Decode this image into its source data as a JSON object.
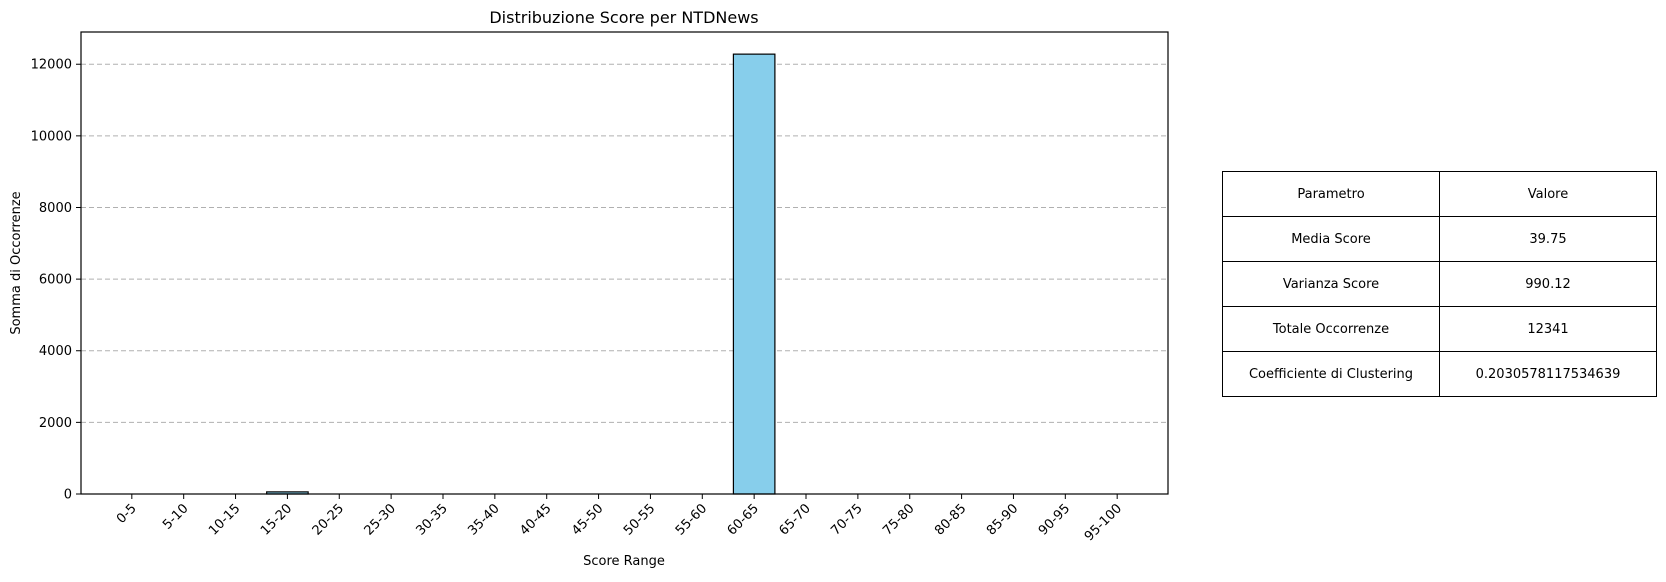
{
  "chart_data": {
    "type": "bar",
    "title": "Distribuzione Score per NTDNews",
    "xlabel": "Score Range",
    "ylabel": "Somma di Occorrenze",
    "categories": [
      "0-5",
      "5-10",
      "10-15",
      "15-20",
      "20-25",
      "25-30",
      "30-35",
      "35-40",
      "40-45",
      "45-50",
      "50-55",
      "55-60",
      "60-65",
      "65-70",
      "70-75",
      "75-80",
      "80-85",
      "85-90",
      "90-95",
      "95-100"
    ],
    "values": [
      0,
      0,
      0,
      59,
      0,
      0,
      0,
      0,
      0,
      0,
      0,
      0,
      12282,
      0,
      0,
      0,
      0,
      0,
      0,
      0
    ],
    "ylim": [
      0,
      12900
    ],
    "yticks": [
      0,
      2000,
      4000,
      6000,
      8000,
      10000,
      12000
    ],
    "ytick_labels": [
      "0",
      "2000",
      "4000",
      "6000",
      "8000",
      "10000",
      "12000"
    ],
    "grid": "y-dashed",
    "bar_color": "#87CEEB",
    "edge_color": "#000000"
  },
  "table": {
    "header": [
      "Parametro",
      "Valore"
    ],
    "rows": [
      [
        "Media Score",
        "39.75"
      ],
      [
        "Varianza Score",
        "990.12"
      ],
      [
        "Totale Occorrenze",
        "12341"
      ],
      [
        "Coefficiente di Clustering",
        "0.2030578117534639"
      ]
    ]
  }
}
